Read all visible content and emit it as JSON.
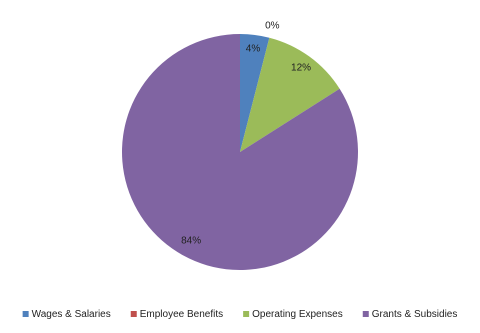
{
  "chart_data": {
    "type": "pie",
    "categories": [
      "Wages & Salaries",
      "Employee Benefits",
      "Operating Expenses",
      "Grants & Subsidies"
    ],
    "values": [
      4,
      0,
      12,
      84
    ],
    "value_labels": [
      "4%",
      "0%",
      "12%",
      "84%"
    ],
    "colors": [
      "#4f81bd",
      "#c0504d",
      "#9bbb59",
      "#8064a2"
    ],
    "legend": "bottom"
  }
}
